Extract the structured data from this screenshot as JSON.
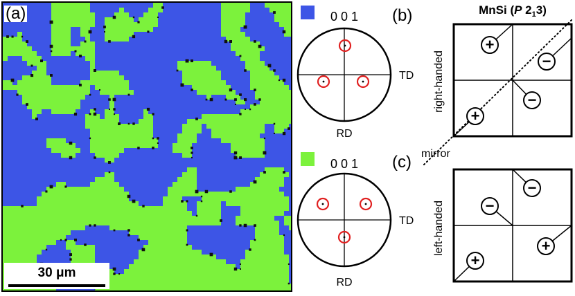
{
  "panel_a": {
    "label": "(a)",
    "scalebar": "30 μm"
  },
  "colors": {
    "right_handed_blue": "#3d55e6",
    "left_handed_green": "#7cf23c",
    "grain_boundary": "#111111",
    "pole_marker": "#e02020"
  },
  "panel_b": {
    "label": "(b)",
    "pole_top": "0 0 1",
    "td": "TD",
    "rd": "RD"
  },
  "panel_c": {
    "label": "(c)",
    "pole_top": "0 0 1",
    "td": "TD",
    "rd": "RD"
  },
  "diagram": {
    "title_main": "MnSi (",
    "title_italic": "P",
    "title_num": " 2",
    "title_sub": "1",
    "title_end": "3)",
    "right_handed": "right-handed",
    "left_handed": "left-handed",
    "mirror": "mirror",
    "plus": "+",
    "minus": "−"
  }
}
